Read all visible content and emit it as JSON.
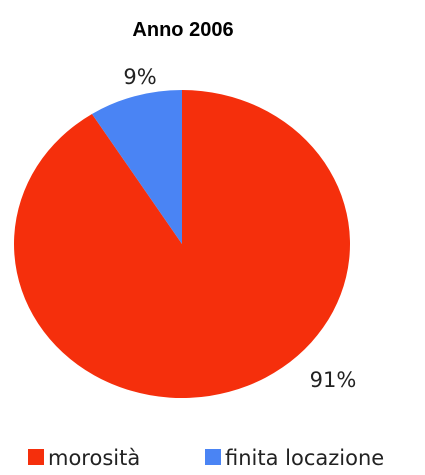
{
  "chart_data": {
    "type": "pie",
    "title": "Anno 2006",
    "slices": [
      {
        "label": "morosità",
        "value": 91,
        "display": "91%",
        "color": "#f52f0c"
      },
      {
        "label": "finita locazione",
        "value": 9,
        "display": "9%",
        "color": "#4a84f4"
      }
    ],
    "legend_position": "bottom"
  }
}
